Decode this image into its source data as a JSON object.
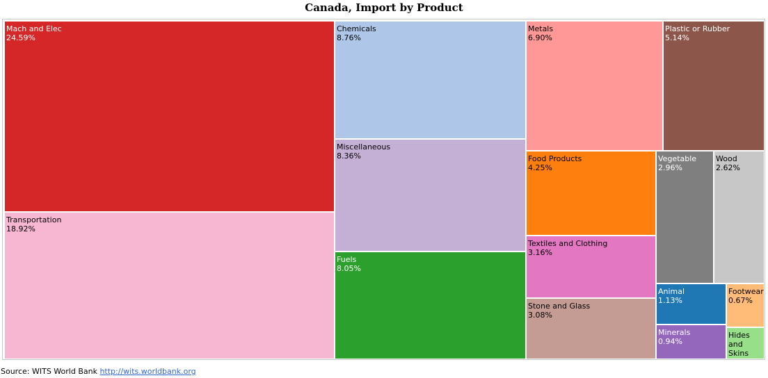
{
  "title": "Canada, Import by Product",
  "source": {
    "prefix": "Source: WITS World Bank",
    "link_text": "http://wits.worldbank.org"
  },
  "chart_data": {
    "type": "treemap",
    "title": "Canada, Import by Product",
    "unit": "%",
    "items": [
      {
        "name": "Mach and Elec",
        "value": 24.59,
        "label": "24.59%",
        "color": "#d62728",
        "text_color": "#ffffff"
      },
      {
        "name": "Transportation",
        "value": 18.92,
        "label": "18.92%",
        "color": "#f7b6d2",
        "text_color": "#000000"
      },
      {
        "name": "Chemicals",
        "value": 8.76,
        "label": "8.76%",
        "color": "#aec7e8",
        "text_color": "#000000"
      },
      {
        "name": "Miscellaneous",
        "value": 8.36,
        "label": "8.36%",
        "color": "#c5b0d5",
        "text_color": "#000000"
      },
      {
        "name": "Fuels",
        "value": 8.05,
        "label": "8.05%",
        "color": "#2ca02c",
        "text_color": "#ffffff"
      },
      {
        "name": "Metals",
        "value": 6.9,
        "label": "6.90%",
        "color": "#ff9896",
        "text_color": "#000000"
      },
      {
        "name": "Plastic or Rubber",
        "value": 5.14,
        "label": "5.14%",
        "color": "#8c564b",
        "text_color": "#ffffff"
      },
      {
        "name": "Food Products",
        "value": 4.25,
        "label": "4.25%",
        "color": "#ff7f0e",
        "text_color": "#000000"
      },
      {
        "name": "Textiles and Clothing",
        "value": 3.16,
        "label": "3.16%",
        "color": "#e377c2",
        "text_color": "#000000"
      },
      {
        "name": "Stone and Glass",
        "value": 3.08,
        "label": "3.08%",
        "color": "#c49c94",
        "text_color": "#000000"
      },
      {
        "name": "Vegetable",
        "value": 2.96,
        "label": "2.96%",
        "color": "#7f7f7f",
        "text_color": "#ffffff"
      },
      {
        "name": "Wood",
        "value": 2.62,
        "label": "2.62%",
        "color": "#c7c7c7",
        "text_color": "#000000"
      },
      {
        "name": "Animal",
        "value": 1.13,
        "label": "1.13%",
        "color": "#1f77b4",
        "text_color": "#ffffff"
      },
      {
        "name": "Footwear",
        "value": 0.67,
        "label": "0.67%",
        "color": "#ffbb78",
        "text_color": "#000000"
      },
      {
        "name": "Minerals",
        "value": 0.94,
        "label": "0.94%",
        "color": "#9467bd",
        "text_color": "#ffffff"
      },
      {
        "name": "Hides and Skins",
        "value": 0.47,
        "label": "",
        "color": "#98df8a",
        "text_color": "#000000"
      }
    ]
  }
}
